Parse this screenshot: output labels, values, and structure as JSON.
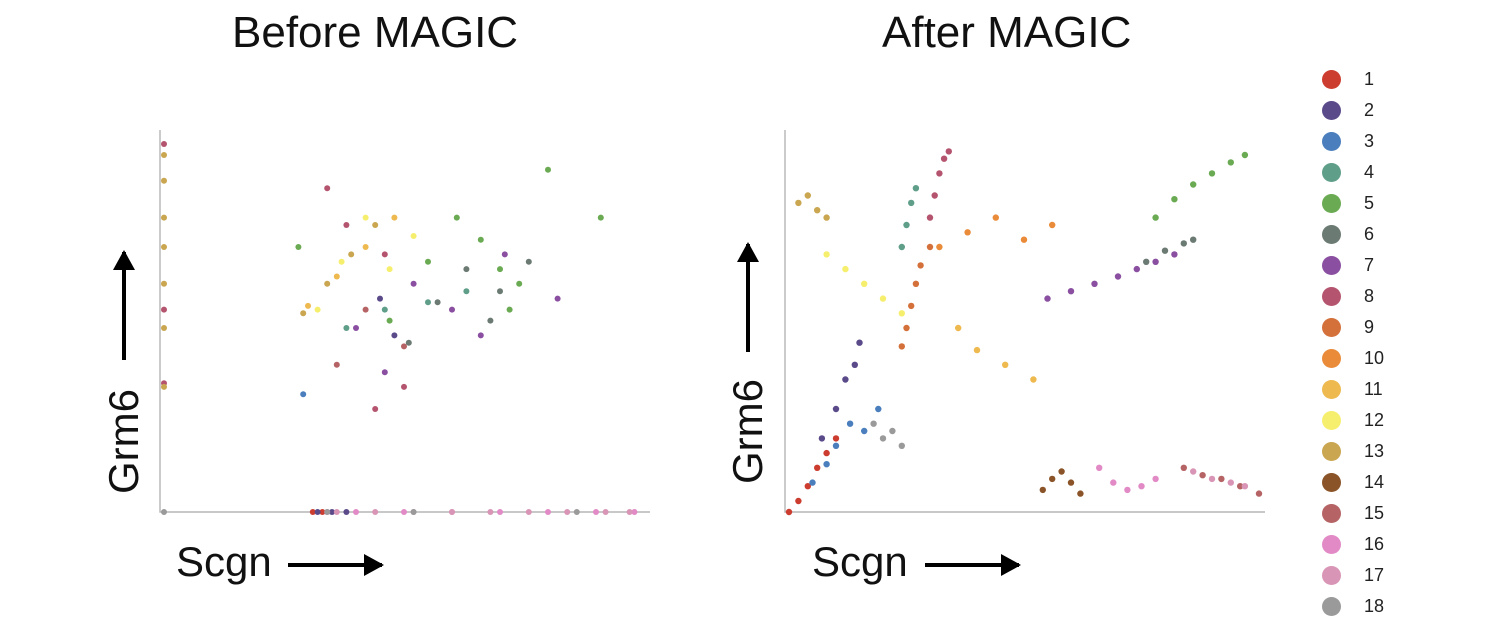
{
  "chart_data": [
    {
      "type": "scatter",
      "title": "Before MAGIC",
      "xlabel": "Scgn",
      "ylabel": "Grm6",
      "grid": false,
      "legend": "right",
      "xlim": [
        0,
        1
      ],
      "ylim": [
        0,
        1
      ],
      "axis_ticks_labeled": false,
      "series": [
        {
          "cluster": "1",
          "x": [
            0.31,
            0.33
          ],
          "y": [
            0,
            0
          ]
        },
        {
          "cluster": "2",
          "x": [
            0.32,
            0.35,
            0.38,
            0.45,
            0.48
          ],
          "y": [
            0,
            0,
            0,
            0.58,
            0.48
          ]
        },
        {
          "cluster": "3",
          "x": [
            0.29
          ],
          "y": [
            0.32
          ]
        },
        {
          "cluster": "4",
          "x": [
            0.38,
            0.46,
            0.55,
            0.63
          ],
          "y": [
            0.5,
            0.55,
            0.57,
            0.6
          ]
        },
        {
          "cluster": "5",
          "x": [
            0.28,
            0.47,
            0.55,
            0.61,
            0.66,
            0.7,
            0.72,
            0.74,
            0.8,
            0.91
          ],
          "y": [
            0.72,
            0.52,
            0.68,
            0.8,
            0.74,
            0.66,
            0.55,
            0.62,
            0.93,
            0.8
          ]
        },
        {
          "cluster": "6",
          "x": [
            0.51,
            0.57,
            0.63,
            0.7,
            0.68,
            0.76
          ],
          "y": [
            0.46,
            0.57,
            0.66,
            0.6,
            0.52,
            0.68
          ]
        },
        {
          "cluster": "7",
          "x": [
            0.4,
            0.46,
            0.52,
            0.6,
            0.66,
            0.71,
            0.82
          ],
          "y": [
            0.5,
            0.38,
            0.62,
            0.55,
            0.48,
            0.7,
            0.58
          ]
        },
        {
          "cluster": "8",
          "x": [
            0,
            0,
            0,
            0.34,
            0.38,
            0.46,
            0.5,
            0.44
          ],
          "y": [
            1.0,
            0.55,
            0.35,
            0.88,
            0.78,
            0.7,
            0.34,
            0.28
          ]
        },
        {
          "cluster": "11",
          "x": [
            0.3,
            0.36,
            0.42,
            0.48
          ],
          "y": [
            0.56,
            0.64,
            0.72,
            0.8
          ]
        },
        {
          "cluster": "12",
          "x": [
            0.32,
            0.37,
            0.42,
            0.47,
            0.52
          ],
          "y": [
            0.55,
            0.68,
            0.8,
            0.66,
            0.75
          ]
        },
        {
          "cluster": "13",
          "x": [
            0,
            0,
            0,
            0,
            0,
            0,
            0,
            0.29,
            0.34,
            0.39,
            0.44
          ],
          "y": [
            0.97,
            0.9,
            0.8,
            0.72,
            0.62,
            0.5,
            0.34,
            0.54,
            0.62,
            0.7,
            0.78
          ]
        },
        {
          "cluster": "15",
          "x": [
            0.36,
            0.42,
            0.5
          ],
          "y": [
            0.4,
            0.55,
            0.45
          ]
        },
        {
          "cluster": "16",
          "x": [
            0.34,
            0.4,
            0.5,
            0.6,
            0.7,
            0.8,
            0.9,
            0.98
          ],
          "y": [
            0,
            0,
            0,
            0,
            0,
            0,
            0,
            0
          ]
        },
        {
          "cluster": "17",
          "x": [
            0.36,
            0.44,
            0.52,
            0.6,
            0.68,
            0.76,
            0.84,
            0.92,
            0.97
          ],
          "y": [
            0,
            0,
            0,
            0,
            0,
            0,
            0,
            0,
            0
          ]
        },
        {
          "cluster": "18",
          "x": [
            0,
            0.34,
            0.52,
            0.86
          ],
          "y": [
            0,
            0,
            0,
            0
          ]
        }
      ]
    },
    {
      "type": "scatter",
      "title": "After MAGIC",
      "xlabel": "Scgn",
      "ylabel": "Grm6",
      "grid": false,
      "legend": "right",
      "xlim": [
        0,
        1
      ],
      "ylim": [
        0,
        1
      ],
      "axis_ticks_labeled": false,
      "series": [
        {
          "cluster": "1",
          "x": [
            0.0,
            0.02,
            0.04,
            0.06,
            0.08,
            0.1
          ],
          "y": [
            0.0,
            0.03,
            0.07,
            0.12,
            0.16,
            0.2
          ]
        },
        {
          "cluster": "2",
          "x": [
            0.07,
            0.1,
            0.12,
            0.14,
            0.15
          ],
          "y": [
            0.2,
            0.28,
            0.36,
            0.4,
            0.46
          ]
        },
        {
          "cluster": "3",
          "x": [
            0.05,
            0.08,
            0.1,
            0.13,
            0.16,
            0.19
          ],
          "y": [
            0.08,
            0.13,
            0.18,
            0.24,
            0.22,
            0.28
          ]
        },
        {
          "cluster": "4",
          "x": [
            0.24,
            0.25,
            0.26,
            0.27
          ],
          "y": [
            0.72,
            0.78,
            0.84,
            0.88
          ]
        },
        {
          "cluster": "5",
          "x": [
            0.78,
            0.82,
            0.86,
            0.9,
            0.94,
            0.97
          ],
          "y": [
            0.8,
            0.85,
            0.89,
            0.92,
            0.95,
            0.97
          ]
        },
        {
          "cluster": "6",
          "x": [
            0.76,
            0.8,
            0.84,
            0.86
          ],
          "y": [
            0.68,
            0.71,
            0.73,
            0.74
          ]
        },
        {
          "cluster": "7",
          "x": [
            0.55,
            0.6,
            0.65,
            0.7,
            0.74,
            0.78,
            0.82
          ],
          "y": [
            0.58,
            0.6,
            0.62,
            0.64,
            0.66,
            0.68,
            0.7
          ]
        },
        {
          "cluster": "8",
          "x": [
            0.3,
            0.31,
            0.32,
            0.33,
            0.34
          ],
          "y": [
            0.8,
            0.86,
            0.92,
            0.96,
            0.98
          ]
        },
        {
          "cluster": "9",
          "x": [
            0.24,
            0.25,
            0.26,
            0.27,
            0.28,
            0.3
          ],
          "y": [
            0.45,
            0.5,
            0.56,
            0.62,
            0.67,
            0.72
          ]
        },
        {
          "cluster": "10",
          "x": [
            0.32,
            0.38,
            0.44,
            0.5,
            0.56
          ],
          "y": [
            0.72,
            0.76,
            0.8,
            0.74,
            0.78
          ]
        },
        {
          "cluster": "11",
          "x": [
            0.36,
            0.4,
            0.46,
            0.52
          ],
          "y": [
            0.5,
            0.44,
            0.4,
            0.36
          ]
        },
        {
          "cluster": "12",
          "x": [
            0.08,
            0.12,
            0.16,
            0.2,
            0.24
          ],
          "y": [
            0.7,
            0.66,
            0.62,
            0.58,
            0.54
          ]
        },
        {
          "cluster": "13",
          "x": [
            0.02,
            0.04,
            0.06,
            0.08
          ],
          "y": [
            0.84,
            0.86,
            0.82,
            0.8
          ]
        },
        {
          "cluster": "14",
          "x": [
            0.54,
            0.56,
            0.58,
            0.6,
            0.62
          ],
          "y": [
            0.06,
            0.09,
            0.11,
            0.08,
            0.05
          ]
        },
        {
          "cluster": "15",
          "x": [
            0.84,
            0.88,
            0.92,
            0.96,
            1.0
          ],
          "y": [
            0.12,
            0.1,
            0.09,
            0.07,
            0.05
          ]
        },
        {
          "cluster": "16",
          "x": [
            0.66,
            0.69,
            0.72,
            0.75,
            0.78
          ],
          "y": [
            0.12,
            0.08,
            0.06,
            0.07,
            0.09
          ]
        },
        {
          "cluster": "17",
          "x": [
            0.86,
            0.9,
            0.94,
            0.97
          ],
          "y": [
            0.11,
            0.09,
            0.08,
            0.07
          ]
        },
        {
          "cluster": "18",
          "x": [
            0.18,
            0.2,
            0.22,
            0.24
          ],
          "y": [
            0.24,
            0.2,
            0.22,
            0.18
          ]
        }
      ]
    }
  ],
  "legend": {
    "items": [
      {
        "label": "1",
        "color": "#cc3d2f"
      },
      {
        "label": "2",
        "color": "#5a4a8a"
      },
      {
        "label": "3",
        "color": "#4a7ebd"
      },
      {
        "label": "4",
        "color": "#5f9e88"
      },
      {
        "label": "5",
        "color": "#6aaa52"
      },
      {
        "label": "6",
        "color": "#6b7a72"
      },
      {
        "label": "7",
        "color": "#8a4fa0"
      },
      {
        "label": "8",
        "color": "#b5546e"
      },
      {
        "label": "9",
        "color": "#d4703a"
      },
      {
        "label": "10",
        "color": "#ea8b3a"
      },
      {
        "label": "11",
        "color": "#eeb94f"
      },
      {
        "label": "12",
        "color": "#f6ef6e"
      },
      {
        "label": "13",
        "color": "#c9a64f"
      },
      {
        "label": "14",
        "color": "#8a5428"
      },
      {
        "label": "15",
        "color": "#b56364"
      },
      {
        "label": "16",
        "color": "#e28ac6"
      },
      {
        "label": "17",
        "color": "#d995b6"
      },
      {
        "label": "18",
        "color": "#9a9a9a"
      }
    ]
  },
  "icons": {
    "x_arrow": "arrow-right-icon",
    "y_arrow": "arrow-up-icon"
  }
}
